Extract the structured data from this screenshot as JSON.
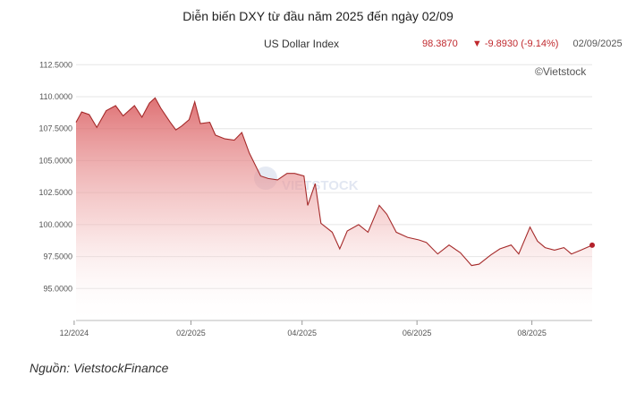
{
  "header": {
    "title": "Diễn biến DXY từ đầu năm 2025 đến ngày 02/09",
    "subtitle": "US Dollar Index",
    "last_value": "98.3870",
    "change_arrow": "▼",
    "change": "-9.8930 (-9.14%)",
    "date": "02/09/2025",
    "credit": "©Vietstock",
    "watermark": "VIETSTOCK"
  },
  "source": "Nguồn: VietstockFinance",
  "colors": {
    "line": "#a52a2a",
    "fill_top": "#d9595c",
    "grid": "#e6e6e6",
    "marker": "#b3202a"
  },
  "chart_data": {
    "type": "area",
    "ylim": [
      92.5,
      113.5
    ],
    "yticks": [
      95,
      97.5,
      100,
      102.5,
      105,
      107.5,
      110,
      112.5
    ],
    "ytick_labels": [
      "95.0000",
      "97.5000",
      "100.0000",
      "102.5000",
      "105.0000",
      "107.5000",
      "110.0000",
      "112.5000"
    ],
    "xlim": [
      "2024-12-02",
      "2025-09-02"
    ],
    "xticks": [
      "2024-12-01",
      "2025-02-01",
      "2025-04-01",
      "2025-06-01",
      "2025-08-01"
    ],
    "xtick_labels": [
      "12/2024",
      "02/2025",
      "04/2025",
      "06/2025",
      "08/2025"
    ],
    "series": [
      {
        "x": [
          "2024-12-02",
          "2024-12-05",
          "2024-12-09",
          "2024-12-13",
          "2024-12-18",
          "2024-12-23",
          "2024-12-27",
          "2025-01-02",
          "2025-01-06",
          "2025-01-10",
          "2025-01-13",
          "2025-01-16",
          "2025-01-21",
          "2025-01-24",
          "2025-01-27",
          "2025-01-31",
          "2025-02-03",
          "2025-02-06",
          "2025-02-11",
          "2025-02-14",
          "2025-02-19",
          "2025-02-24",
          "2025-02-28",
          "2025-03-04",
          "2025-03-10",
          "2025-03-14",
          "2025-03-19",
          "2025-03-24",
          "2025-03-28",
          "2025-04-02",
          "2025-04-04",
          "2025-04-08",
          "2025-04-11",
          "2025-04-17",
          "2025-04-21",
          "2025-04-25",
          "2025-05-01",
          "2025-05-06",
          "2025-05-12",
          "2025-05-16",
          "2025-05-21",
          "2025-05-27",
          "2025-06-02",
          "2025-06-06",
          "2025-06-12",
          "2025-06-18",
          "2025-06-24",
          "2025-06-30",
          "2025-07-04",
          "2025-07-10",
          "2025-07-15",
          "2025-07-21",
          "2025-07-25",
          "2025-07-31",
          "2025-08-04",
          "2025-08-08",
          "2025-08-13",
          "2025-08-18",
          "2025-08-22",
          "2025-08-27",
          "2025-09-02"
        ],
        "y": [
          108.0,
          108.8,
          108.6,
          107.6,
          108.9,
          109.3,
          108.5,
          109.3,
          108.4,
          109.5,
          109.9,
          109.1,
          108.0,
          107.4,
          107.7,
          108.2,
          109.6,
          107.9,
          108.0,
          107.0,
          106.7,
          106.6,
          107.2,
          105.6,
          103.8,
          103.6,
          103.5,
          104.0,
          104.0,
          103.8,
          101.5,
          103.2,
          100.1,
          99.4,
          98.1,
          99.5,
          100.0,
          99.4,
          101.5,
          100.8,
          99.4,
          99.0,
          98.8,
          98.6,
          97.7,
          98.4,
          97.8,
          96.8,
          96.9,
          97.6,
          98.1,
          98.4,
          97.7,
          99.8,
          98.7,
          98.2,
          98.0,
          98.2,
          97.7,
          98.0,
          98.387
        ]
      }
    ]
  }
}
